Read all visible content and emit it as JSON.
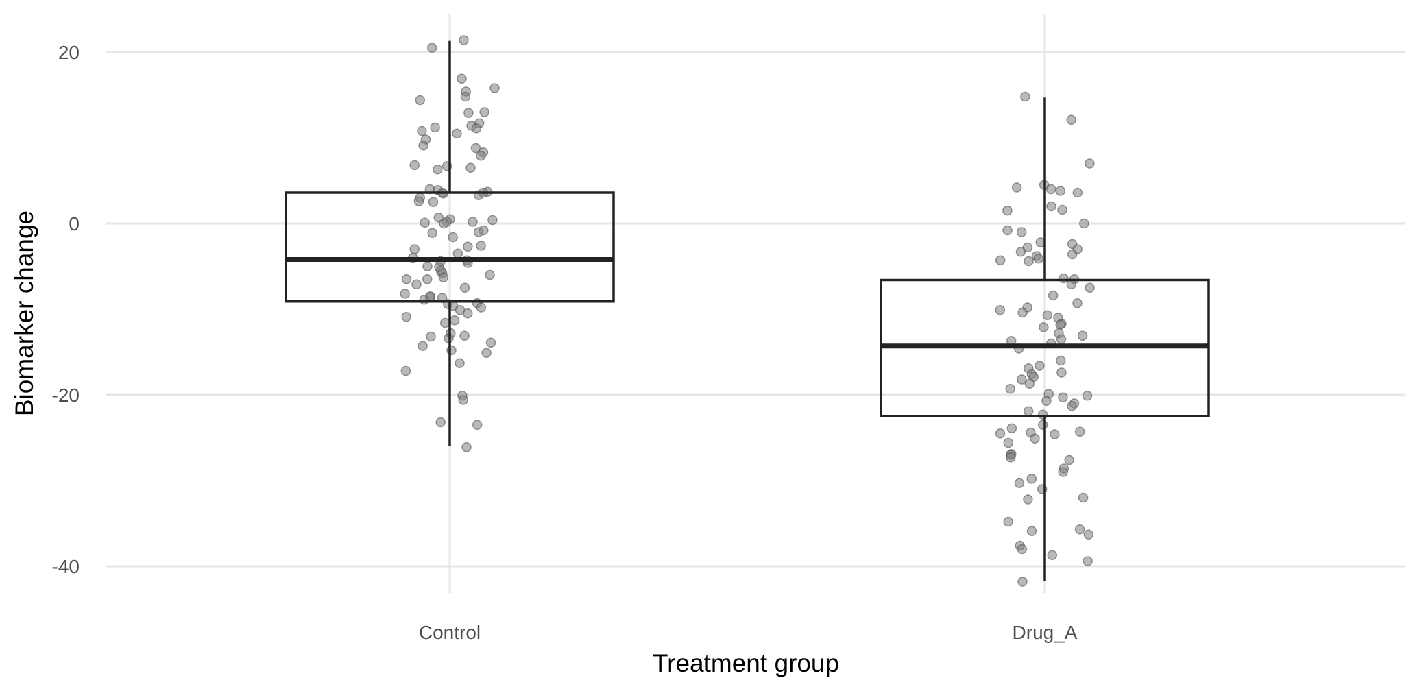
{
  "chart_data": {
    "type": "box",
    "title": "",
    "xlabel": "Treatment group",
    "ylabel": "Biomarker change",
    "categories": [
      "Control",
      "Drug_A"
    ],
    "ylim": [
      -43.5,
      24.5
    ],
    "yticks": [
      20,
      0,
      -20,
      -40
    ],
    "grid": true,
    "legend": "none",
    "colors": {
      "grid": "#e6e6e6",
      "box": "#222222",
      "points": "#808080",
      "text": "#4d4d4d"
    },
    "boxes": [
      {
        "category": "Control",
        "min": -26.0,
        "q1": -9.1,
        "median": -4.2,
        "q3": 3.6,
        "max": 21.3
      },
      {
        "category": "Drug_A",
        "min": -41.7,
        "q1": -22.5,
        "median": -14.3,
        "q3": -6.6,
        "max": 14.7
      }
    ],
    "points": [
      {
        "category": "Control",
        "values": [
          21.4,
          20.5,
          16.9,
          15.8,
          15.4,
          14.8,
          14.4,
          13.0,
          12.9,
          11.7,
          11.4,
          11.2,
          11.1,
          10.8,
          10.5,
          9.8,
          9.1,
          8.8,
          8.3,
          7.9,
          6.8,
          6.7,
          6.5,
          6.3,
          4.0,
          3.9,
          3.7,
          3.6,
          3.6,
          3.5,
          3.3,
          3.0,
          2.6,
          2.5,
          0.7,
          0.5,
          0.4,
          0.2,
          0.2,
          0.1,
          0.0,
          -0.8,
          -1.0,
          -1.1,
          -1.6,
          -2.6,
          -2.7,
          -3.0,
          -3.5,
          -4.0,
          -4.3,
          -4.4,
          -4.6,
          -5.0,
          -5.1,
          -5.5,
          -5.8,
          -6.0,
          -6.3,
          -6.5,
          -6.5,
          -7.1,
          -7.5,
          -8.2,
          -8.5,
          -8.6,
          -8.7,
          -8.9,
          -9.3,
          -9.4,
          -9.6,
          -9.8,
          -10.1,
          -10.5,
          -10.9,
          -11.3,
          -11.6,
          -12.8,
          -13.1,
          -13.2,
          -13.4,
          -13.9,
          -14.3,
          -14.8,
          -15.1,
          -16.3,
          -17.2,
          -20.1,
          -20.6,
          -23.2,
          -23.5,
          -26.1
        ]
      },
      {
        "category": "Drug_A",
        "values": [
          14.8,
          12.1,
          7.0,
          4.5,
          4.2,
          4.0,
          3.8,
          3.6,
          2.0,
          1.6,
          1.5,
          0.0,
          -0.8,
          -1.0,
          -2.2,
          -2.4,
          -2.8,
          -3.0,
          -3.3,
          -3.6,
          -3.8,
          -4.1,
          -4.3,
          -4.4,
          -6.4,
          -6.5,
          -7.1,
          -7.5,
          -8.4,
          -9.3,
          -9.8,
          -10.1,
          -10.4,
          -10.7,
          -11.0,
          -11.7,
          -11.8,
          -12.1,
          -12.8,
          -13.1,
          -13.5,
          -13.7,
          -14.0,
          -14.6,
          -16.0,
          -16.6,
          -16.9,
          -17.4,
          -17.6,
          -17.9,
          -18.2,
          -18.7,
          -19.3,
          -19.9,
          -20.1,
          -20.3,
          -20.7,
          -21.0,
          -21.3,
          -21.9,
          -22.3,
          -23.5,
          -23.9,
          -24.3,
          -24.4,
          -24.5,
          -24.6,
          -25.1,
          -25.6,
          -26.9,
          -27.0,
          -27.3,
          -27.6,
          -28.6,
          -29.0,
          -29.8,
          -30.3,
          -31.0,
          -32.0,
          -32.2,
          -34.8,
          -35.7,
          -35.9,
          -36.3,
          -37.6,
          -38.0,
          -38.7,
          -39.4,
          -41.8
        ]
      }
    ]
  }
}
